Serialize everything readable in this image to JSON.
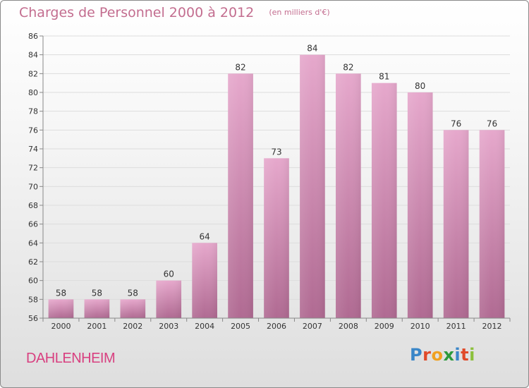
{
  "title": "Charges de Personnel 2000 à 2012",
  "subtitle": "(en milliers d'€)",
  "commune": "DAHLENHEIM",
  "logo": {
    "text": "Proxiti",
    "letter_colors": [
      "#3a86c8",
      "#e04a2a",
      "#f0a020",
      "#2c9a3c",
      "#3a86c8",
      "#e04a2a",
      "#8cc03c"
    ]
  },
  "colors": {
    "title": "#c36d8f",
    "commune": "#d84080",
    "bar_top": "#e6a8cc",
    "bar_bottom": "#b06a92",
    "axis": "#888888",
    "grid": "#dddddd",
    "text": "#333333"
  },
  "chart_data": {
    "type": "bar",
    "categories": [
      "2000",
      "2001",
      "2002",
      "2003",
      "2004",
      "2005",
      "2006",
      "2007",
      "2008",
      "2009",
      "2010",
      "2011",
      "2012"
    ],
    "values": [
      58,
      58,
      58,
      60,
      64,
      82,
      73,
      84,
      82,
      81,
      80,
      76,
      76
    ],
    "ylim": [
      56,
      86
    ],
    "yticks": [
      56,
      58,
      60,
      62,
      64,
      66,
      68,
      70,
      72,
      74,
      76,
      78,
      80,
      82,
      84,
      86
    ],
    "data_labels": true,
    "grid": true
  }
}
